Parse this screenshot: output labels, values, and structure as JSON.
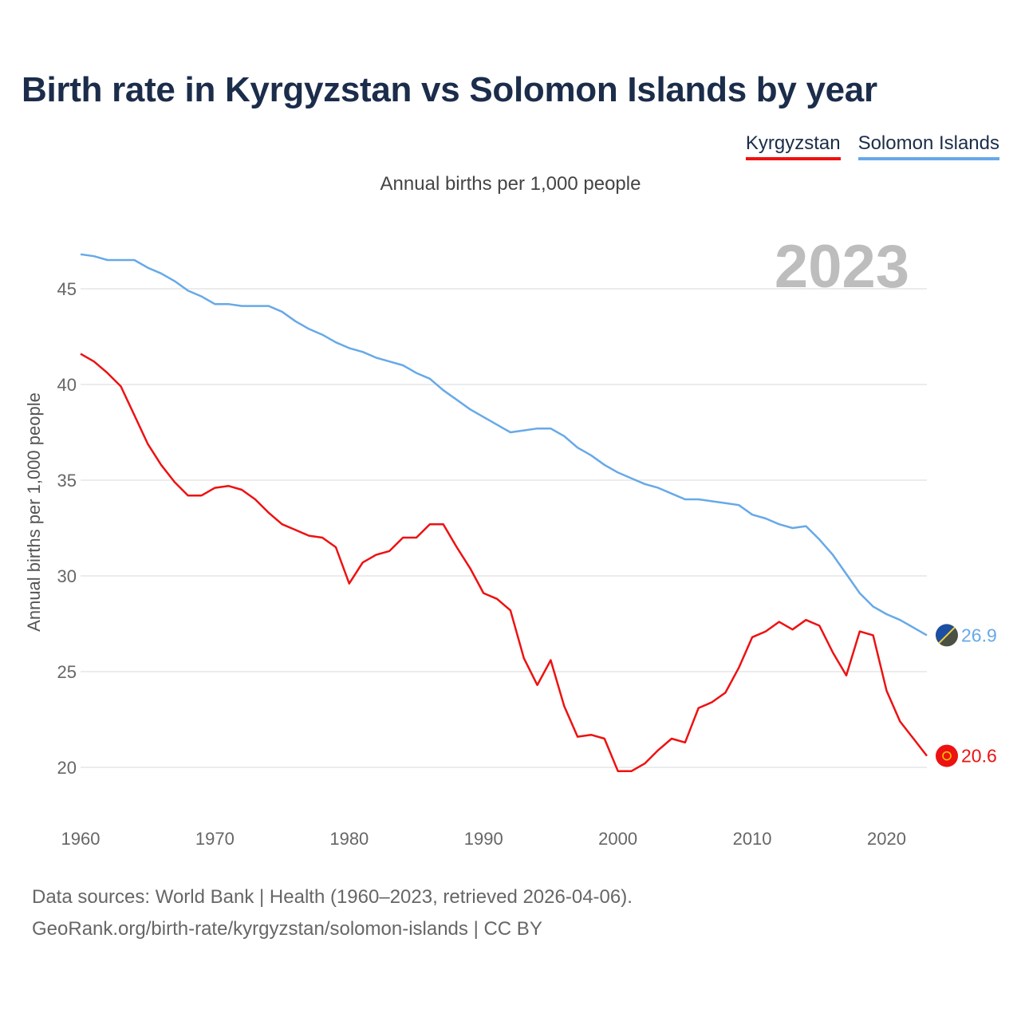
{
  "title": "Birth rate in Kyrgyzstan vs Solomon Islands by year",
  "subtitle": "Annual births per 1,000 people",
  "legend": [
    {
      "label": "Kyrgyzstan",
      "color": "#ee1111"
    },
    {
      "label": "Solomon Islands",
      "color": "#67a9e8"
    }
  ],
  "source": {
    "line1": "Data sources: World Bank | Health (1960–2023, retrieved 2026-04-06).",
    "line2": "GeoRank.org/birth-rate/kyrgyzstan/solomon-islands | CC BY"
  },
  "chart_data": {
    "type": "line",
    "title": "Birth rate in Kyrgyzstan vs Solomon Islands by year",
    "ylabel": "Annual births per 1,000 people",
    "xlabel": "",
    "year_watermark": "2023",
    "xlim": [
      1960,
      2023
    ],
    "ylim": [
      18,
      48
    ],
    "x_ticks": [
      1960,
      1970,
      1980,
      1990,
      2000,
      2010,
      2020
    ],
    "y_ticks": [
      20,
      25,
      30,
      35,
      40,
      45
    ],
    "grid": true,
    "x": [
      1960,
      1961,
      1962,
      1963,
      1964,
      1965,
      1966,
      1967,
      1968,
      1969,
      1970,
      1971,
      1972,
      1973,
      1974,
      1975,
      1976,
      1977,
      1978,
      1979,
      1980,
      1981,
      1982,
      1983,
      1984,
      1985,
      1986,
      1987,
      1988,
      1989,
      1990,
      1991,
      1992,
      1993,
      1994,
      1995,
      1996,
      1997,
      1998,
      1999,
      2000,
      2001,
      2002,
      2003,
      2004,
      2005,
      2006,
      2007,
      2008,
      2009,
      2010,
      2011,
      2012,
      2013,
      2014,
      2015,
      2016,
      2017,
      2018,
      2019,
      2020,
      2021,
      2022,
      2023
    ],
    "series": [
      {
        "name": "Kyrgyzstan",
        "color": "#ee1111",
        "end_label": "20.6",
        "values": [
          41.6,
          41.2,
          40.6,
          39.9,
          38.4,
          36.9,
          35.8,
          34.9,
          34.2,
          34.2,
          34.6,
          34.7,
          34.5,
          34.0,
          33.3,
          32.7,
          32.4,
          32.1,
          32.0,
          31.5,
          29.6,
          30.7,
          31.1,
          31.3,
          32.0,
          32.0,
          32.7,
          32.7,
          31.5,
          30.4,
          29.1,
          28.8,
          28.2,
          25.7,
          24.3,
          25.6,
          23.2,
          21.6,
          21.7,
          21.5,
          19.8,
          19.8,
          20.2,
          20.9,
          21.5,
          21.3,
          23.1,
          23.4,
          23.9,
          25.2,
          26.8,
          27.1,
          27.6,
          27.2,
          27.7,
          27.4,
          26.0,
          24.8,
          27.1,
          26.9,
          24.0,
          22.4,
          21.5,
          20.6
        ]
      },
      {
        "name": "Solomon Islands",
        "color": "#67a9e8",
        "end_label": "26.9",
        "values": [
          46.8,
          46.7,
          46.5,
          46.5,
          46.5,
          46.1,
          45.8,
          45.4,
          44.9,
          44.6,
          44.2,
          44.2,
          44.1,
          44.1,
          44.1,
          43.8,
          43.3,
          42.9,
          42.6,
          42.2,
          41.9,
          41.7,
          41.4,
          41.2,
          41.0,
          40.6,
          40.3,
          39.7,
          39.2,
          38.7,
          38.3,
          37.9,
          37.5,
          37.6,
          37.7,
          37.7,
          37.3,
          36.7,
          36.3,
          35.8,
          35.4,
          35.1,
          34.8,
          34.6,
          34.3,
          34.0,
          34.0,
          33.9,
          33.8,
          33.7,
          33.2,
          33.0,
          32.7,
          32.5,
          32.6,
          31.9,
          31.1,
          30.1,
          29.1,
          28.4,
          28.0,
          27.7,
          27.3,
          26.9
        ]
      }
    ]
  }
}
